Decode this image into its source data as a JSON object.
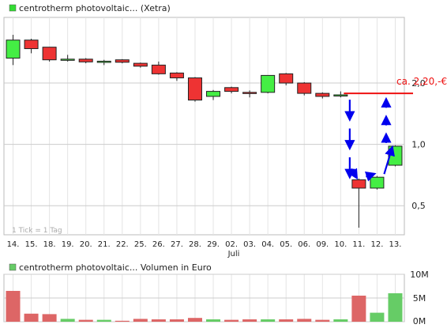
{
  "chart_data": [
    {
      "type": "candlestick",
      "legend": "centrotherm photovoltaic... (Xetra)",
      "legend_color": "#33dd33",
      "categories": [
        "14.",
        "15.",
        "18.",
        "19.",
        "20.",
        "21.",
        "22.",
        "25.",
        "26.",
        "27.",
        "28.",
        "29.",
        "02.",
        "03.",
        "04.",
        "05.",
        "06.",
        "09.",
        "10.",
        "11.",
        "12.",
        "13."
      ],
      "month_label": "Juli",
      "y_scale": "log",
      "ylim": [
        0.36,
        4.2
      ],
      "yticks": [
        {
          "value": 0.5,
          "label": "0,5"
        },
        {
          "value": 1.0,
          "label": "1,0"
        },
        {
          "value": 2.0,
          "label": "2,0"
        }
      ],
      "candles": [
        {
          "o": 2.65,
          "h": 3.45,
          "l": 2.45,
          "c": 3.25
        },
        {
          "o": 3.25,
          "h": 3.3,
          "l": 2.8,
          "c": 2.95
        },
        {
          "o": 3.0,
          "h": 3.0,
          "l": 2.55,
          "c": 2.6
        },
        {
          "o": 2.6,
          "h": 2.75,
          "l": 2.55,
          "c": 2.62
        },
        {
          "o": 2.62,
          "h": 2.65,
          "l": 2.5,
          "c": 2.54
        },
        {
          "o": 2.56,
          "h": 2.6,
          "l": 2.45,
          "c": 2.56
        },
        {
          "o": 2.6,
          "h": 2.62,
          "l": 2.5,
          "c": 2.53
        },
        {
          "o": 2.5,
          "h": 2.52,
          "l": 2.38,
          "c": 2.42
        },
        {
          "o": 2.45,
          "h": 2.55,
          "l": 2.2,
          "c": 2.22
        },
        {
          "o": 2.24,
          "h": 2.26,
          "l": 2.05,
          "c": 2.12
        },
        {
          "o": 2.12,
          "h": 2.14,
          "l": 1.62,
          "c": 1.65
        },
        {
          "o": 1.72,
          "h": 1.85,
          "l": 1.65,
          "c": 1.82
        },
        {
          "o": 1.9,
          "h": 1.92,
          "l": 1.78,
          "c": 1.82
        },
        {
          "o": 1.8,
          "h": 1.84,
          "l": 1.7,
          "c": 1.78
        },
        {
          "o": 1.8,
          "h": 2.18,
          "l": 1.78,
          "c": 2.18
        },
        {
          "o": 2.22,
          "h": 2.24,
          "l": 1.95,
          "c": 2.0
        },
        {
          "o": 2.0,
          "h": 2.02,
          "l": 1.74,
          "c": 1.78
        },
        {
          "o": 1.78,
          "h": 1.8,
          "l": 1.68,
          "c": 1.72
        },
        {
          "o": 1.75,
          "h": 1.82,
          "l": 1.7,
          "c": 1.75
        },
        {
          "o": 0.67,
          "h": 0.68,
          "l": 0.39,
          "c": 0.61
        },
        {
          "o": 0.61,
          "h": 0.7,
          "l": 0.6,
          "c": 0.69
        },
        {
          "o": 0.79,
          "h": 0.99,
          "l": 0.78,
          "c": 0.98
        }
      ],
      "reference_line": {
        "value": 1.78,
        "label": "ca. 2,20,-€",
        "color": "#ee1111"
      },
      "arrows_color": "#0000ee",
      "tick_note": "1 Tick = 1 Tag",
      "up_color": "#44ee44",
      "down_color": "#ee3333"
    },
    {
      "type": "bar",
      "legend": "centrotherm photovoltaic... Volumen in Euro",
      "legend_color": "#66cc66",
      "categories": [
        "14.",
        "15.",
        "18.",
        "19.",
        "20.",
        "21.",
        "22.",
        "25.",
        "26.",
        "27.",
        "28.",
        "29.",
        "02.",
        "03.",
        "04.",
        "05.",
        "06.",
        "09.",
        "10.",
        "11.",
        "12.",
        "13."
      ],
      "ylim": [
        0,
        10
      ],
      "yticks": [
        {
          "value": 10,
          "label": "10M"
        },
        {
          "value": 5,
          "label": "5M"
        },
        {
          "value": 0,
          "label": "0M"
        }
      ],
      "values": [
        6.5,
        1.7,
        1.6,
        0.6,
        0.4,
        0.4,
        0.2,
        0.6,
        0.5,
        0.5,
        0.8,
        0.5,
        0.4,
        0.5,
        0.5,
        0.5,
        0.6,
        0.4,
        0.5,
        5.5,
        1.9,
        6.0
      ],
      "colors": [
        "#dd6666",
        "#dd6666",
        "#dd6666",
        "#66cc66",
        "#dd6666",
        "#66cc66",
        "#dd6666",
        "#dd6666",
        "#dd6666",
        "#dd6666",
        "#dd6666",
        "#66cc66",
        "#dd6666",
        "#dd6666",
        "#66cc66",
        "#dd6666",
        "#dd6666",
        "#dd6666",
        "#66cc66",
        "#dd6666",
        "#66cc66",
        "#66cc66"
      ]
    }
  ]
}
